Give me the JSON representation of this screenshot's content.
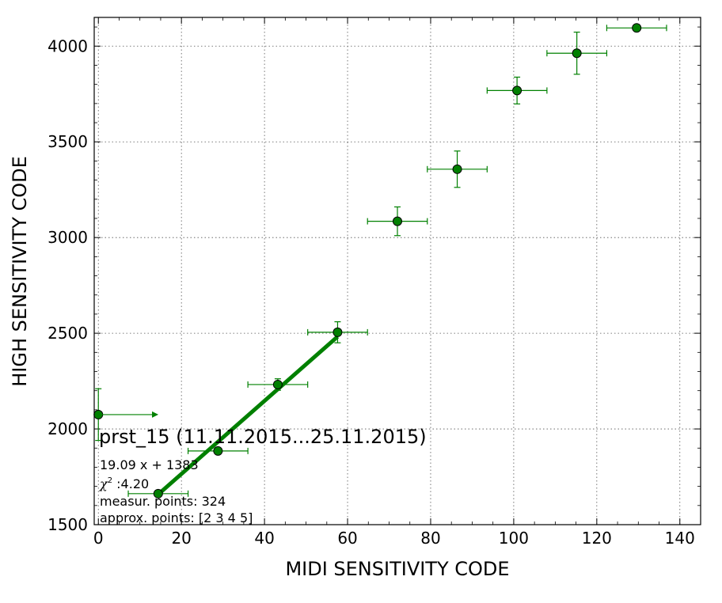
{
  "chart_data": {
    "type": "scatter",
    "xlabel": "MIDI SENSITIVITY CODE",
    "ylabel": "HIGH SENSITIVITY CODE",
    "xlim": [
      -1,
      145
    ],
    "ylim": [
      1500,
      4150
    ],
    "x_ticks": [
      0,
      20,
      40,
      60,
      80,
      100,
      120,
      140
    ],
    "y_ticks": [
      1500,
      2000,
      2500,
      3000,
      3500,
      4000
    ],
    "grid": true,
    "colors": {
      "points": "#008000",
      "edge": "#000000",
      "fit": "#008000",
      "errorbars": "#008000"
    },
    "points": [
      {
        "x": 0,
        "y": 2075,
        "xerr": 0,
        "yerr": 135
      },
      {
        "x": 14.4,
        "y": 1662,
        "xerr": 7.2,
        "yerr": 0
      },
      {
        "x": 28.8,
        "y": 1885,
        "xerr": 7.2,
        "yerr": 15
      },
      {
        "x": 43.2,
        "y": 2232,
        "xerr": 7.2,
        "yerr": 30
      },
      {
        "x": 57.6,
        "y": 2505,
        "xerr": 7.2,
        "yerr": 55
      },
      {
        "x": 72.0,
        "y": 3085,
        "xerr": 7.2,
        "yerr": 75
      },
      {
        "x": 86.4,
        "y": 3357,
        "xerr": 7.2,
        "yerr": 95
      },
      {
        "x": 100.8,
        "y": 3768,
        "xerr": 7.2,
        "yerr": 70
      },
      {
        "x": 115.2,
        "y": 3963,
        "xerr": 7.2,
        "yerr": 110
      },
      {
        "x": 129.6,
        "y": 4095,
        "xerr": 7.2,
        "yerr": 0
      }
    ],
    "arrow": {
      "x": 0,
      "y": 2075,
      "x_to": 7.2
    },
    "fit_line": {
      "slope": 19.09,
      "intercept": 1383,
      "x_range": [
        14.4,
        57.6
      ]
    },
    "annotations": {
      "title": "prst_15 (11.11.2015...25.11.2015)",
      "equation": "19.09 x + 1383",
      "chi_symbol": "χ",
      "chi_sup": "2",
      "chi_value": " :4.20",
      "measur_points": "measur. points: 324",
      "approx_points": "approx. points: [2 3 4 5]"
    }
  }
}
